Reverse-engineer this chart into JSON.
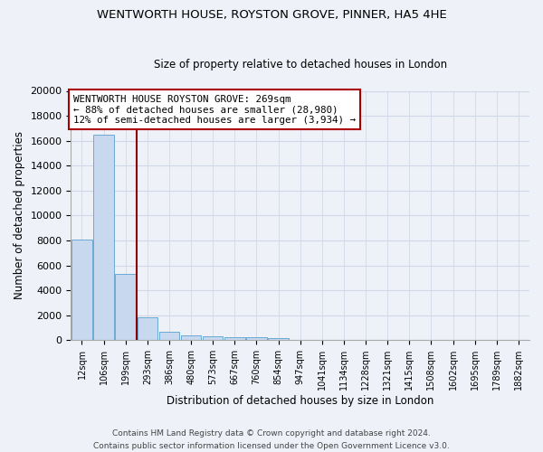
{
  "title": "WENTWORTH HOUSE, ROYSTON GROVE, PINNER, HA5 4HE",
  "subtitle": "Size of property relative to detached houses in London",
  "xlabel": "Distribution of detached houses by size in London",
  "ylabel": "Number of detached properties",
  "categories": [
    "12sqm",
    "106sqm",
    "199sqm",
    "293sqm",
    "386sqm",
    "480sqm",
    "573sqm",
    "667sqm",
    "760sqm",
    "854sqm",
    "947sqm",
    "1041sqm",
    "1134sqm",
    "1228sqm",
    "1321sqm",
    "1415sqm",
    "1508sqm",
    "1602sqm",
    "1695sqm",
    "1789sqm",
    "1882sqm"
  ],
  "values": [
    8100,
    16500,
    5300,
    1800,
    700,
    350,
    270,
    230,
    200,
    180,
    0,
    0,
    0,
    0,
    0,
    0,
    0,
    0,
    0,
    0,
    0
  ],
  "bar_color": "#c8d8ee",
  "bar_edge_color": "#6aaad4",
  "vline_color": "#8b0000",
  "annotation_text": "WENTWORTH HOUSE ROYSTON GROVE: 269sqm\n← 88% of detached houses are smaller (28,980)\n12% of semi-detached houses are larger (3,934) →",
  "annotation_box_color": "#ffffff",
  "annotation_box_edge": "#aa0000",
  "ylim": [
    0,
    20000
  ],
  "yticks": [
    0,
    2000,
    4000,
    6000,
    8000,
    10000,
    12000,
    14000,
    16000,
    18000,
    20000
  ],
  "footer1": "Contains HM Land Registry data © Crown copyright and database right 2024.",
  "footer2": "Contains public sector information licensed under the Open Government Licence v3.0.",
  "bg_color": "#eef1f8",
  "grid_color": "#d0d8e8",
  "spine_color": "#aaaaaa"
}
